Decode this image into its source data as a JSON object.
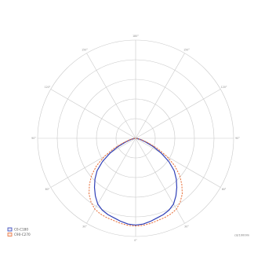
{
  "chart_data": {
    "type": "polar",
    "title": "",
    "unit": "cd/1000lm",
    "radial_range": [
      0,
      300
    ],
    "radial_ticks": [
      60,
      120,
      180,
      240,
      300
    ],
    "angle_labels": [
      "0°",
      "30°",
      "60°",
      "90°",
      "120°",
      "150°",
      "180°",
      "150°",
      "120°",
      "90°",
      "60°",
      "30°"
    ],
    "grid": true,
    "legend_position": "bottom-left",
    "angles_deg": [
      0,
      5,
      10,
      15,
      20,
      25,
      30,
      35,
      40,
      45,
      50,
      55,
      60,
      65,
      70,
      75,
      80,
      85,
      90
    ],
    "series": [
      {
        "name": "C0-C180",
        "color": "#2f3fb7",
        "dashed": false,
        "values": [
          265,
          263,
          258,
          252,
          248,
          242,
          232,
          215,
          196,
          176,
          154,
          124,
          90,
          58,
          32,
          16,
          7,
          3,
          2
        ]
      },
      {
        "name": "C90-C270",
        "color": "#e8703a",
        "dashed": true,
        "values": [
          268,
          267,
          264,
          260,
          258,
          255,
          250,
          238,
          222,
          200,
          176,
          146,
          110,
          74,
          42,
          21,
          9,
          4,
          2
        ]
      }
    ]
  }
}
